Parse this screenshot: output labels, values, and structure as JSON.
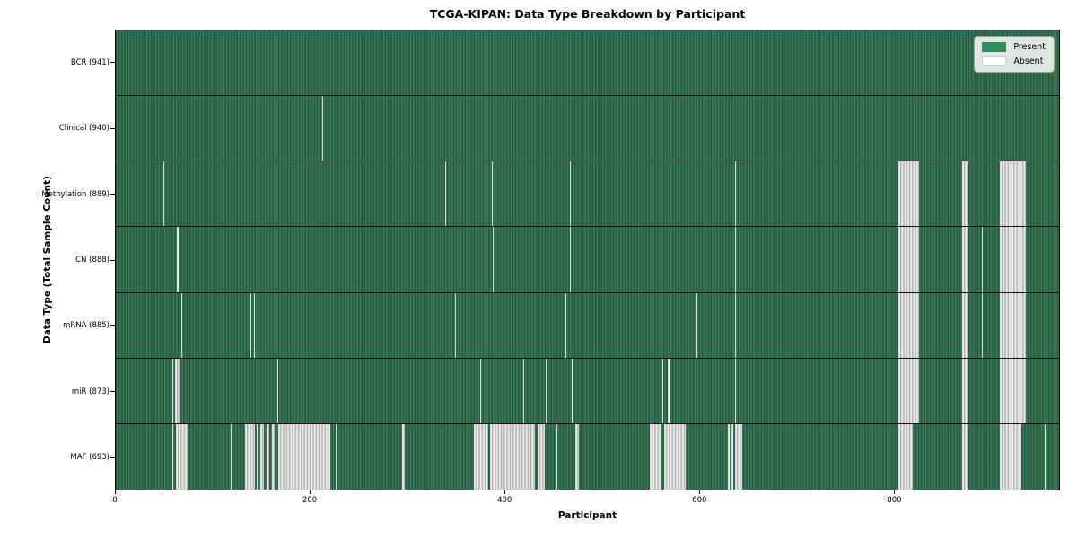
{
  "title": "TCGA-KIPAN: Data Type Breakdown by Participant",
  "axis": {
    "x_label": "Participant",
    "y_label": "Data Type (Total Sample Count)"
  },
  "legend": {
    "present": "Present",
    "absent": "Absent"
  },
  "colors": {
    "present": "#2E8B57",
    "present_shade_dark": "#245841",
    "present_shade_light": "#3F8160",
    "absent": "#FFFFFF",
    "absent_shade": "#A5A5A5",
    "plot_border": "#000000",
    "legend_bg": "#F0F0F0"
  },
  "chart_data": {
    "type": "heatmap",
    "title": "TCGA-KIPAN: Data Type Breakdown by Participant",
    "xlabel": "Participant",
    "ylabel": "Data Type (Total Sample Count)",
    "legend_entries": [
      "Present",
      "Absent"
    ],
    "legend_position": "upper right",
    "grid": "row-separators",
    "x_axis": {
      "min": 0,
      "max": 970,
      "ticks": [
        0,
        200,
        400,
        600,
        800
      ]
    },
    "cell_states": {
      "present_color": "#2E8B57",
      "absent_color": "#FFFFFF"
    },
    "rows": [
      {
        "short": "bcr",
        "label": "BCR (941)",
        "data_type": "BCR",
        "present_count": 941,
        "absent_ranges": []
      },
      {
        "short": "clinical",
        "label": "Clinical (940)",
        "data_type": "Clinical",
        "present_count": 940,
        "absent_ranges": [
          [
            212,
            213
          ]
        ]
      },
      {
        "short": "methylation",
        "label": "Methylation (889)",
        "data_type": "Methylation",
        "present_count": 889,
        "absent_ranges": [
          [
            49,
            50
          ],
          [
            339,
            340
          ],
          [
            387,
            388
          ],
          [
            467,
            468
          ],
          [
            637,
            638
          ],
          [
            805,
            826
          ],
          [
            870,
            877
          ],
          [
            909,
            936
          ]
        ]
      },
      {
        "short": "cn",
        "label": "CN (888)",
        "data_type": "CN",
        "present_count": 888,
        "absent_ranges": [
          [
            63,
            65
          ],
          [
            388,
            389
          ],
          [
            467,
            468
          ],
          [
            637,
            638
          ],
          [
            805,
            826
          ],
          [
            870,
            877
          ],
          [
            891,
            892
          ],
          [
            909,
            936
          ]
        ]
      },
      {
        "short": "mrna",
        "label": "mRNA (885)",
        "data_type": "mRNA",
        "present_count": 885,
        "absent_ranges": [
          [
            67,
            68
          ],
          [
            138,
            139
          ],
          [
            142,
            143
          ],
          [
            349,
            350
          ],
          [
            462,
            463
          ],
          [
            597,
            598
          ],
          [
            637,
            638
          ],
          [
            805,
            826
          ],
          [
            870,
            877
          ],
          [
            891,
            892
          ],
          [
            909,
            936
          ]
        ]
      },
      {
        "short": "mir",
        "label": "miR (873)",
        "data_type": "miR",
        "present_count": 873,
        "absent_ranges": [
          [
            47,
            48
          ],
          [
            58,
            59
          ],
          [
            61,
            66
          ],
          [
            74,
            75
          ],
          [
            166,
            167
          ],
          [
            375,
            376
          ],
          [
            419,
            420
          ],
          [
            442,
            443
          ],
          [
            469,
            470
          ],
          [
            562,
            563
          ],
          [
            568,
            569
          ],
          [
            596,
            597
          ],
          [
            637,
            638
          ],
          [
            805,
            826
          ],
          [
            870,
            877
          ],
          [
            909,
            936
          ]
        ]
      },
      {
        "short": "maf",
        "label": "MAF (693)",
        "data_type": "MAF",
        "present_count": 693,
        "absent_ranges": [
          [
            47,
            48
          ],
          [
            58,
            59
          ],
          [
            62,
            74
          ],
          [
            118,
            119
          ],
          [
            133,
            143
          ],
          [
            145,
            147
          ],
          [
            149,
            152
          ],
          [
            155,
            158
          ],
          [
            161,
            163
          ],
          [
            167,
            221
          ],
          [
            226,
            227
          ],
          [
            294,
            297
          ],
          [
            368,
            383
          ],
          [
            385,
            431
          ],
          [
            434,
            441
          ],
          [
            453,
            454
          ],
          [
            473,
            476
          ],
          [
            549,
            560
          ],
          [
            564,
            586
          ],
          [
            629,
            631
          ],
          [
            633,
            635
          ],
          [
            637,
            644
          ],
          [
            805,
            820
          ],
          [
            870,
            877
          ],
          [
            909,
            931
          ],
          [
            955,
            956
          ]
        ]
      }
    ]
  }
}
